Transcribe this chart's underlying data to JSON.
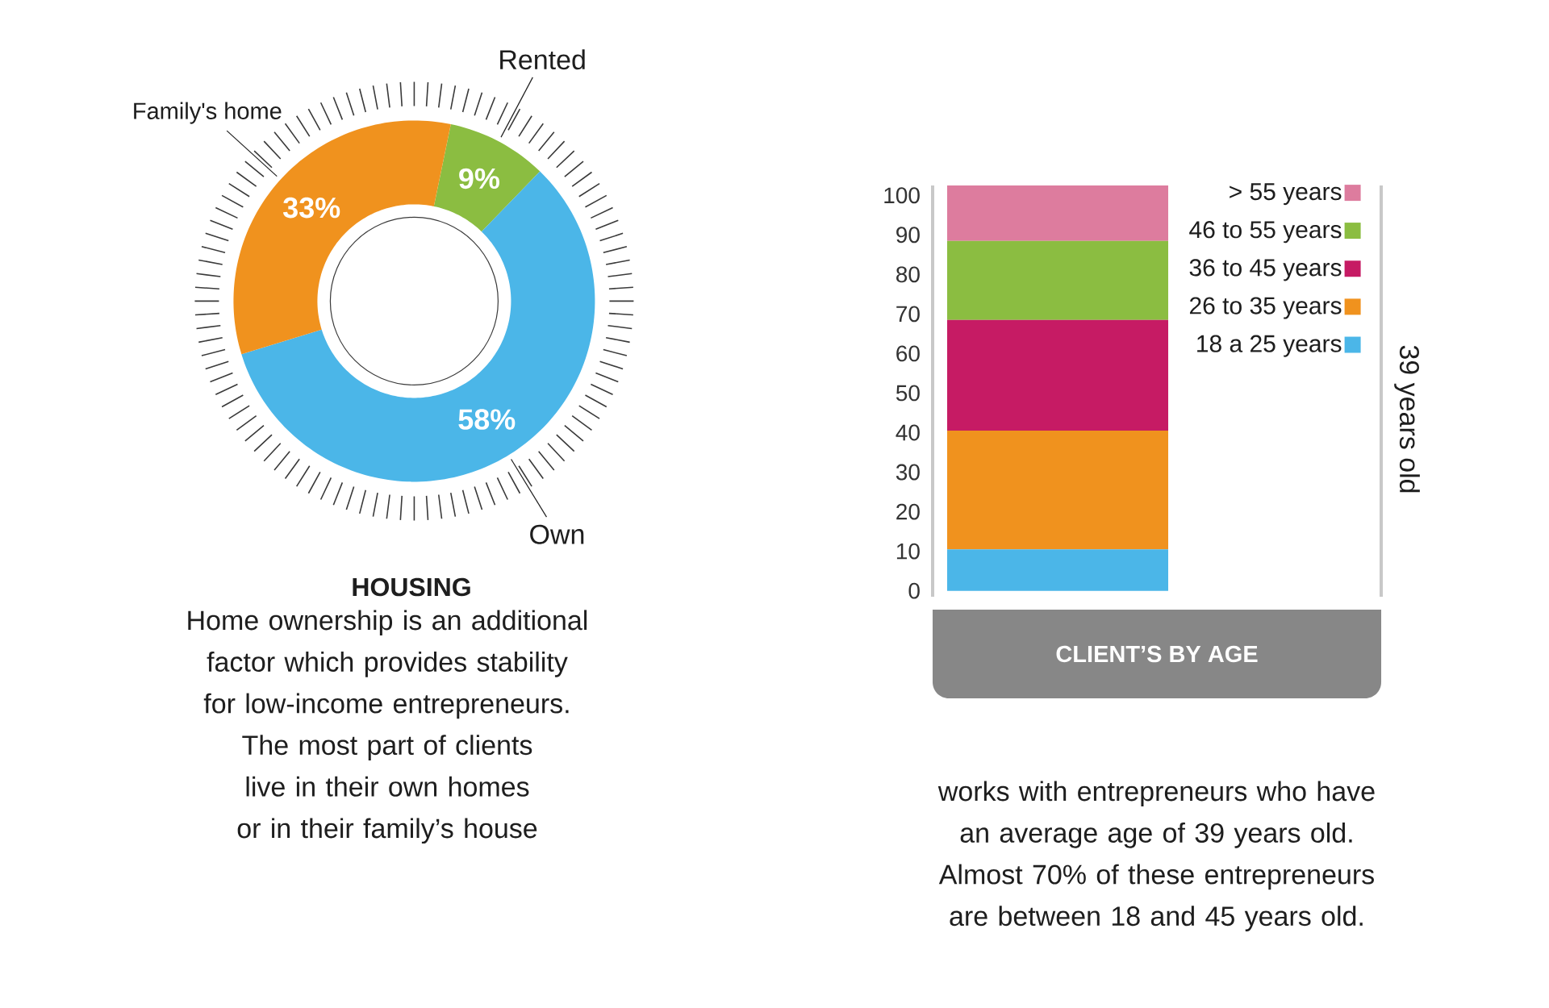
{
  "chart_data": [
    {
      "type": "donut",
      "title": "HOUSING",
      "categories": [
        "Rented",
        "Own",
        "Family's home"
      ],
      "values": [
        9,
        58,
        33
      ],
      "colors": [
        "#8bbd41",
        "#4bb6e8",
        "#f0921e"
      ],
      "value_labels": [
        "9%",
        "58%",
        "33%"
      ],
      "annotations": [
        "Home ownership is an additional factor which provides stability for low-income entrepreneurs. The most part of clients live in their own homes or in their family’s house"
      ]
    },
    {
      "type": "bar",
      "stacked": true,
      "categories": [
        null
      ],
      "series": [
        {
          "name": "18 a 25 years",
          "color": "#4bb6e8",
          "values": [
            10.5
          ]
        },
        {
          "name": "26 to 35 years",
          "color": "#f0921e",
          "values": [
            30
          ]
        },
        {
          "name": "36 to 45 years",
          "color": "#c61b64",
          "values": [
            28
          ]
        },
        {
          "name": "46 to 55 years",
          "color": "#8bbd41",
          "values": [
            20
          ]
        },
        {
          "name": "> 55 years",
          "color": "#dd7c9e",
          "values": [
            14
          ]
        }
      ],
      "ylim": [
        -1.5,
        102.5
      ],
      "yticks": [
        0,
        10,
        20,
        30,
        40,
        50,
        60,
        70,
        80,
        90,
        100
      ],
      "xlabel": "CLIENT’S BY AGE",
      "legend": "top right",
      "tick_labels": "y",
      "annotations": [
        "39 years old",
        "works with entrepreneurs who have an average age of 39 years old. Almost 70% of these entrepreneurs are between 18 and 45 years old."
      ]
    }
  ]
}
